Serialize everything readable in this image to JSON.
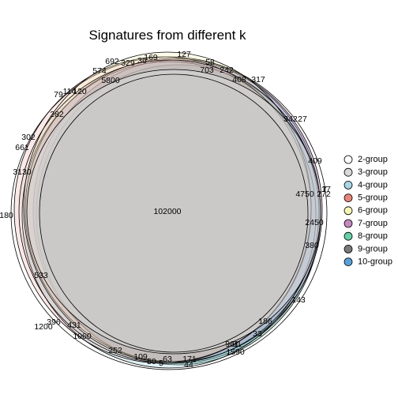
{
  "diagram": {
    "title": "Signatures from different k",
    "legend": [
      {
        "label": "2-group",
        "color": "#ffffff"
      },
      {
        "label": "3-group",
        "color": "#d9d9d9"
      },
      {
        "label": "4-group",
        "color": "#a9d6e5"
      },
      {
        "label": "5-group",
        "color": "#e8857a"
      },
      {
        "label": "6-group",
        "color": "#f7f5b5"
      },
      {
        "label": "7-group",
        "color": "#c48abf"
      },
      {
        "label": "8-group",
        "color": "#66d1a6"
      },
      {
        "label": "9-group",
        "color": "#7a7a7a"
      },
      {
        "label": "10-group",
        "color": "#5aa0d8"
      }
    ],
    "region_labels": [
      "102000",
      "5800",
      "4750",
      "3130",
      "2450",
      "1590",
      "1200",
      "1060",
      "961",
      "703",
      "692",
      "661",
      "574",
      "533",
      "431",
      "409",
      "408",
      "396",
      "380",
      "342",
      "329",
      "317",
      "302",
      "282",
      "272",
      "252",
      "242",
      "186",
      "180",
      "171",
      "169",
      "143",
      "127",
      "120",
      "114",
      "109",
      "91",
      "79",
      "63",
      "58",
      "50",
      "44",
      "36",
      "33",
      "27",
      "17",
      "7",
      "5"
    ]
  }
}
